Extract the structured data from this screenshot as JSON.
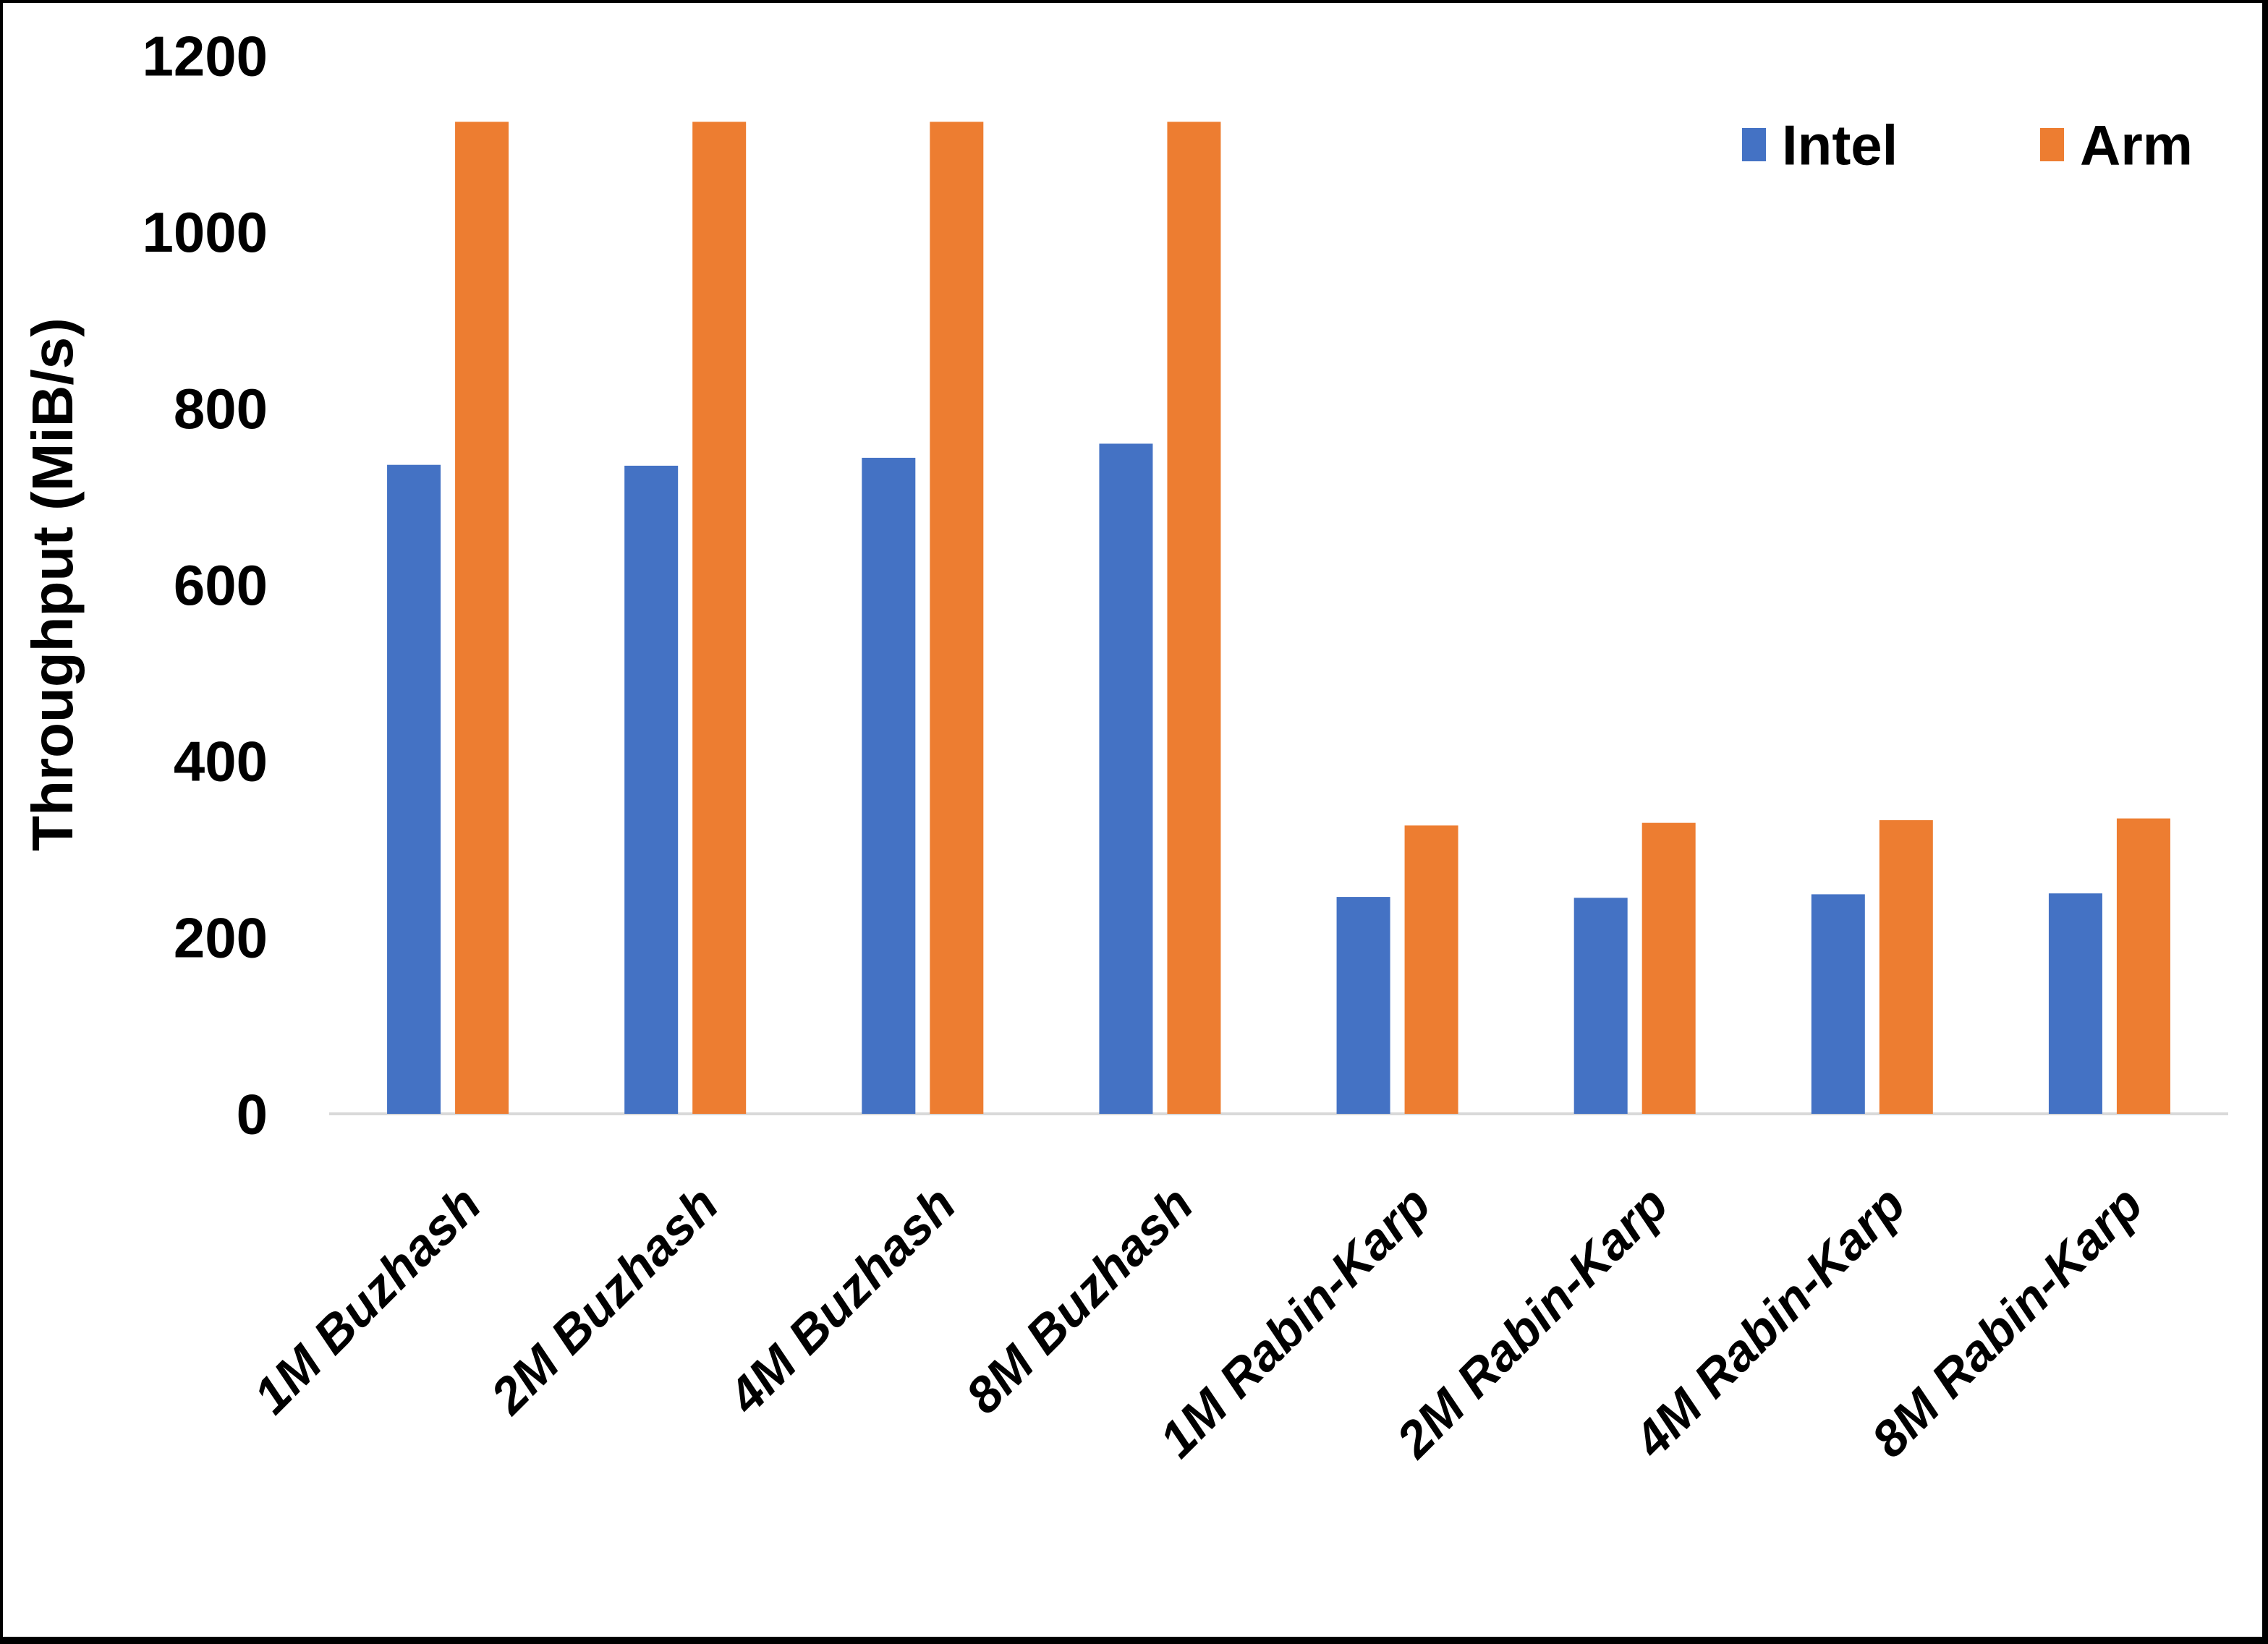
{
  "chart_data": {
    "type": "bar",
    "title": "",
    "xlabel": "",
    "ylabel": "Throughput (MiB/s)",
    "categories": [
      "1M Buzhash",
      "2M Buzhash",
      "4M Buzhash",
      "8M Buzhash",
      "1M Rabin-Karp",
      "2M Rabin-Karp",
      "4M Rabin-Karp",
      "8M Rabin-Karp"
    ],
    "series": [
      {
        "name": "Intel",
        "color": "#4472C4",
        "values": [
          736,
          735,
          744,
          760,
          246,
          245,
          249,
          250
        ]
      },
      {
        "name": "Arm",
        "color": "#ED7D31",
        "values": [
          1125,
          1125,
          1125,
          1125,
          327,
          330,
          333,
          335
        ]
      }
    ],
    "ylim": [
      0,
      1200
    ],
    "yticks": [
      0,
      200,
      400,
      600,
      800,
      1000,
      1200
    ],
    "grid": false,
    "legend_position": "top-right",
    "axis_line_color": "#D9D9D9",
    "text_color": "#000000",
    "frame_color": "#000000",
    "background_color": "#FFFFFF"
  }
}
